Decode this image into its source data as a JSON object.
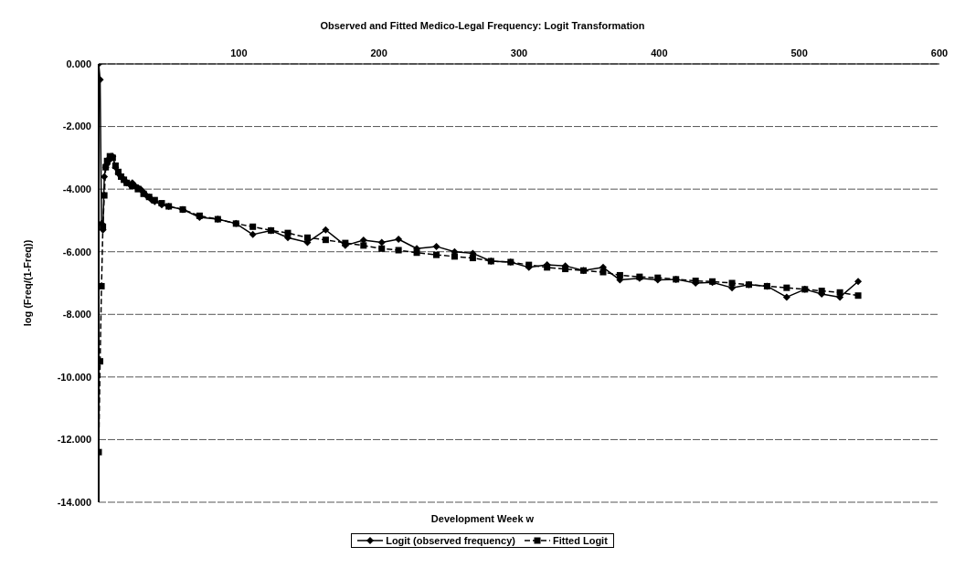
{
  "chart_data": {
    "type": "line",
    "title": "Observed and Fitted Medico-Legal Frequency: Logit Transformation",
    "xlabel": "Development Week w",
    "ylabel": "log (Freq/(1-Freq))",
    "xlim": [
      0,
      600
    ],
    "xticks": [
      100,
      200,
      300,
      400,
      500,
      600
    ],
    "ylim": [
      -14,
      0
    ],
    "yticks": [
      {
        "value": 0,
        "label": "0.000"
      },
      {
        "value": -2,
        "label": "-2.000"
      },
      {
        "value": -4,
        "label": "-4.000"
      },
      {
        "value": -6,
        "label": "-6.000"
      },
      {
        "value": -8,
        "label": "-8.000"
      },
      {
        "value": -10,
        "label": "-10.000"
      },
      {
        "value": -12,
        "label": "-12.000"
      },
      {
        "value": -14,
        "label": "-14.000"
      }
    ],
    "grid": "y",
    "legend": "bottom",
    "series": [
      {
        "name": "Logit (observed frequency)",
        "color": "#000000",
        "marker": "diamond",
        "line_style": "solid",
        "x": [
          0,
          1,
          2,
          3,
          4,
          5,
          6,
          7,
          8,
          9,
          10,
          12,
          14,
          16,
          18,
          20,
          22,
          24,
          26,
          28,
          30,
          32,
          34,
          36,
          38,
          40,
          45,
          50,
          60,
          72,
          85,
          98,
          110,
          123,
          135,
          149,
          162,
          176,
          189,
          202,
          214,
          227,
          241,
          254,
          267,
          280,
          294,
          307,
          320,
          333,
          346,
          360,
          372,
          386,
          399,
          412,
          426,
          438,
          452,
          464,
          477,
          491,
          504,
          516,
          529,
          542
        ],
        "values": [
          0,
          -0.5,
          -5.1,
          -5.3,
          -3.6,
          -3.3,
          -3.2,
          -3.1,
          -3.0,
          -2.95,
          -2.95,
          -3.3,
          -3.5,
          -3.6,
          -3.7,
          -3.8,
          -3.85,
          -3.8,
          -3.9,
          -3.95,
          -4.0,
          -4.1,
          -4.2,
          -4.25,
          -4.35,
          -4.4,
          -4.5,
          -4.55,
          -4.65,
          -4.9,
          -4.96,
          -5.1,
          -5.45,
          -5.32,
          -5.55,
          -5.7,
          -5.3,
          -5.8,
          -5.63,
          -5.7,
          -5.6,
          -5.9,
          -5.83,
          -6.0,
          -6.05,
          -6.3,
          -6.33,
          -6.5,
          -6.42,
          -6.45,
          -6.6,
          -6.5,
          -6.9,
          -6.85,
          -6.9,
          -6.88,
          -7.0,
          -6.98,
          -7.15,
          -7.05,
          -7.1,
          -7.45,
          -7.2,
          -7.35,
          -7.45,
          -6.95
        ]
      },
      {
        "name": "Fitted Logit",
        "color": "#000000",
        "marker": "square",
        "line_style": "dashed",
        "x": [
          0,
          1,
          2,
          3,
          4,
          5,
          6,
          8,
          10,
          12,
          14,
          16,
          18,
          20,
          24,
          28,
          32,
          36,
          40,
          45,
          50,
          60,
          72,
          85,
          98,
          110,
          123,
          135,
          149,
          162,
          176,
          189,
          202,
          214,
          227,
          241,
          254,
          267,
          280,
          294,
          307,
          320,
          333,
          346,
          360,
          372,
          386,
          399,
          412,
          426,
          438,
          452,
          464,
          477,
          491,
          504,
          516,
          529,
          542
        ],
        "values": [
          -12.4,
          -9.5,
          -7.1,
          -5.2,
          -4.2,
          -3.3,
          -3.1,
          -2.95,
          -3.0,
          -3.25,
          -3.45,
          -3.6,
          -3.7,
          -3.8,
          -3.9,
          -4.0,
          -4.15,
          -4.25,
          -4.35,
          -4.45,
          -4.55,
          -4.65,
          -4.85,
          -4.96,
          -5.1,
          -5.2,
          -5.32,
          -5.4,
          -5.55,
          -5.62,
          -5.72,
          -5.8,
          -5.9,
          -5.95,
          -6.03,
          -6.1,
          -6.15,
          -6.2,
          -6.3,
          -6.33,
          -6.42,
          -6.5,
          -6.55,
          -6.6,
          -6.65,
          -6.75,
          -6.8,
          -6.83,
          -6.88,
          -6.93,
          -6.95,
          -7.0,
          -7.05,
          -7.1,
          -7.15,
          -7.2,
          -7.25,
          -7.3,
          -7.4
        ]
      }
    ]
  }
}
